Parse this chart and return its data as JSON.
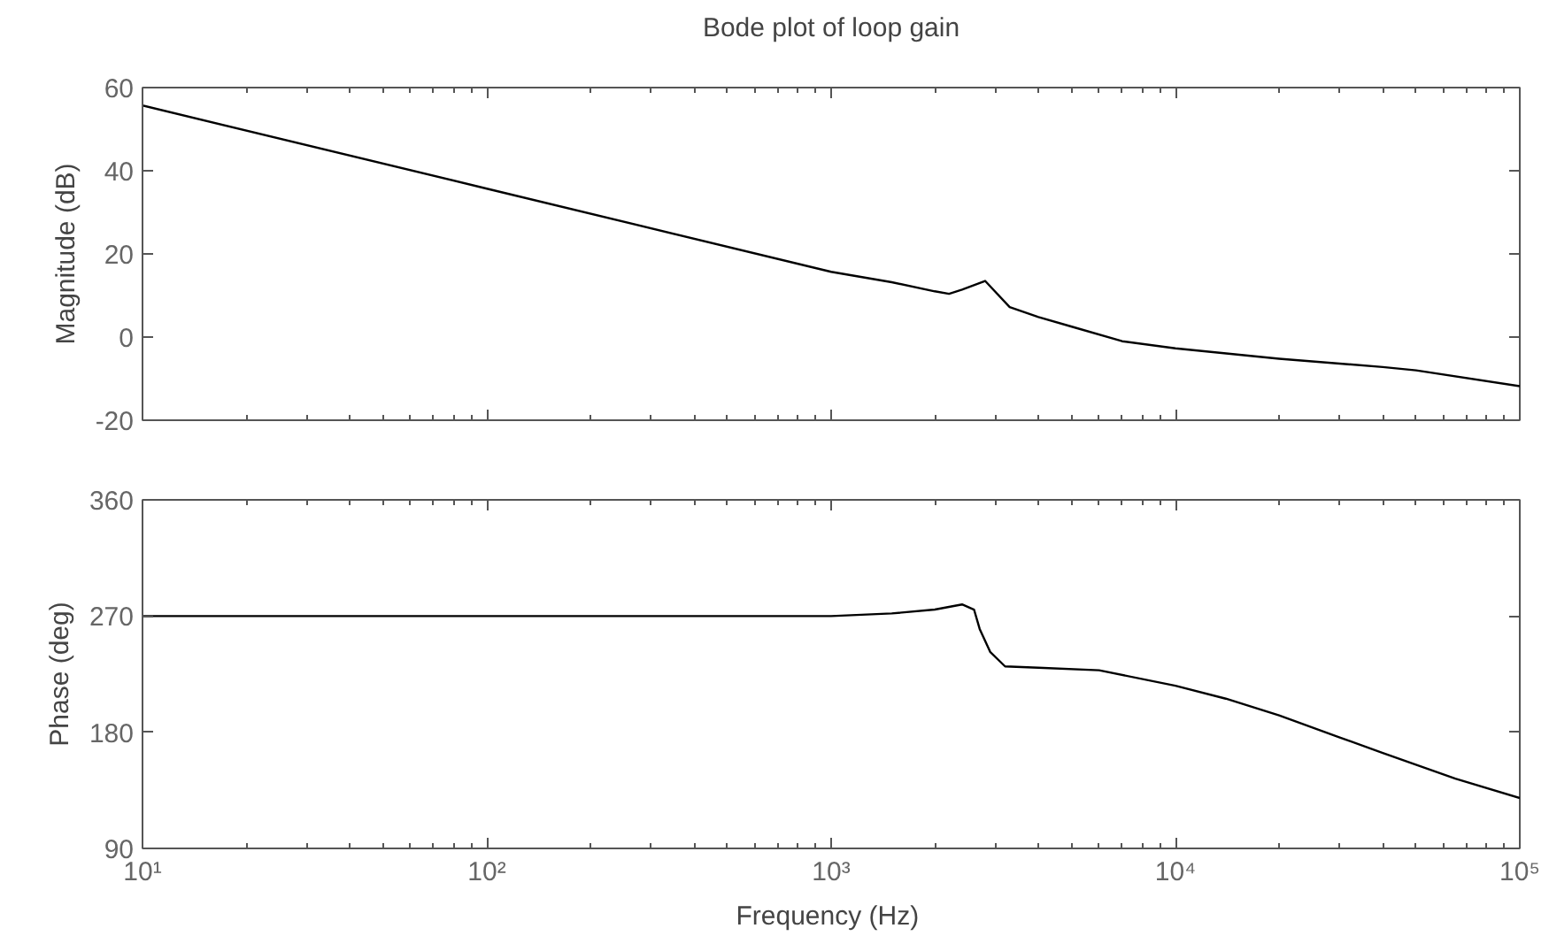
{
  "chart_data": [
    {
      "type": "line",
      "title": "Bode plot of loop gain",
      "ylabel": "Magnitude (dB)",
      "log": "x",
      "grid": false,
      "tick_labels": "y",
      "x": [
        10,
        100,
        1000,
        1500,
        2000,
        2200,
        2400,
        2800,
        3300,
        4000,
        5000,
        7000,
        10000,
        20000,
        40000,
        50000,
        100000
      ],
      "series": [
        {
          "color": "#000000",
          "values": [
            55.7,
            35.7,
            15.7,
            13.2,
            11,
            10.4,
            11.4,
            13.5,
            7.2,
            4.8,
            2.5,
            -1,
            -2.7,
            -5.2,
            -7.2,
            -8,
            -11.8
          ]
        }
      ],
      "xlim": [
        10,
        100000
      ],
      "xticks": [
        {
          "value": 10,
          "label": null
        },
        {
          "value": 100,
          "label": null
        },
        {
          "value": 1000,
          "label": null
        },
        {
          "value": 10000,
          "label": null
        },
        {
          "value": 100000,
          "label": null
        }
      ],
      "ylim": [
        -20,
        60
      ],
      "yticks": [
        -20,
        0,
        20,
        40,
        60
      ]
    },
    {
      "type": "line",
      "xlabel": "Frequency  (Hz)",
      "ylabel": "Phase (deg)",
      "log": "x",
      "grid": false,
      "x": [
        10,
        100,
        1000,
        1500,
        2000,
        2400,
        2600,
        2700,
        2900,
        3200,
        4000,
        6000,
        10000,
        14000,
        20000,
        30000,
        40000,
        65000,
        100000
      ],
      "series": [
        {
          "color": "#000000",
          "values": [
            270,
            270,
            270,
            272,
            275,
            279,
            275,
            260,
            242,
            231,
            230,
            228,
            216,
            206,
            193,
            176,
            164,
            144,
            129
          ]
        }
      ],
      "xlim": [
        10,
        100000
      ],
      "xticks": [
        {
          "value": 10,
          "label": "10¹"
        },
        {
          "value": 100,
          "label": "10²"
        },
        {
          "value": 1000,
          "label": "10³"
        },
        {
          "value": 10000,
          "label": "10⁴"
        },
        {
          "value": 100000,
          "label": "10⁵"
        }
      ],
      "ylim": [
        90,
        360
      ],
      "yticks": [
        90,
        180,
        270,
        360
      ]
    }
  ]
}
